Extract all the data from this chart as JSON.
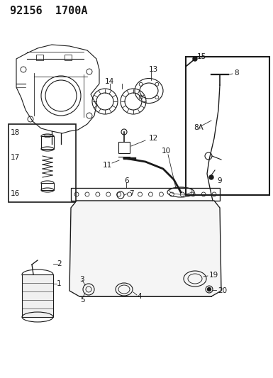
{
  "title": "92156  1700A",
  "bg_color": "#ffffff",
  "line_color": "#1a1a1a",
  "title_fontsize": 11,
  "label_fontsize": 7.5,
  "fig_width": 3.85,
  "fig_height": 5.33,
  "dpi": 100
}
